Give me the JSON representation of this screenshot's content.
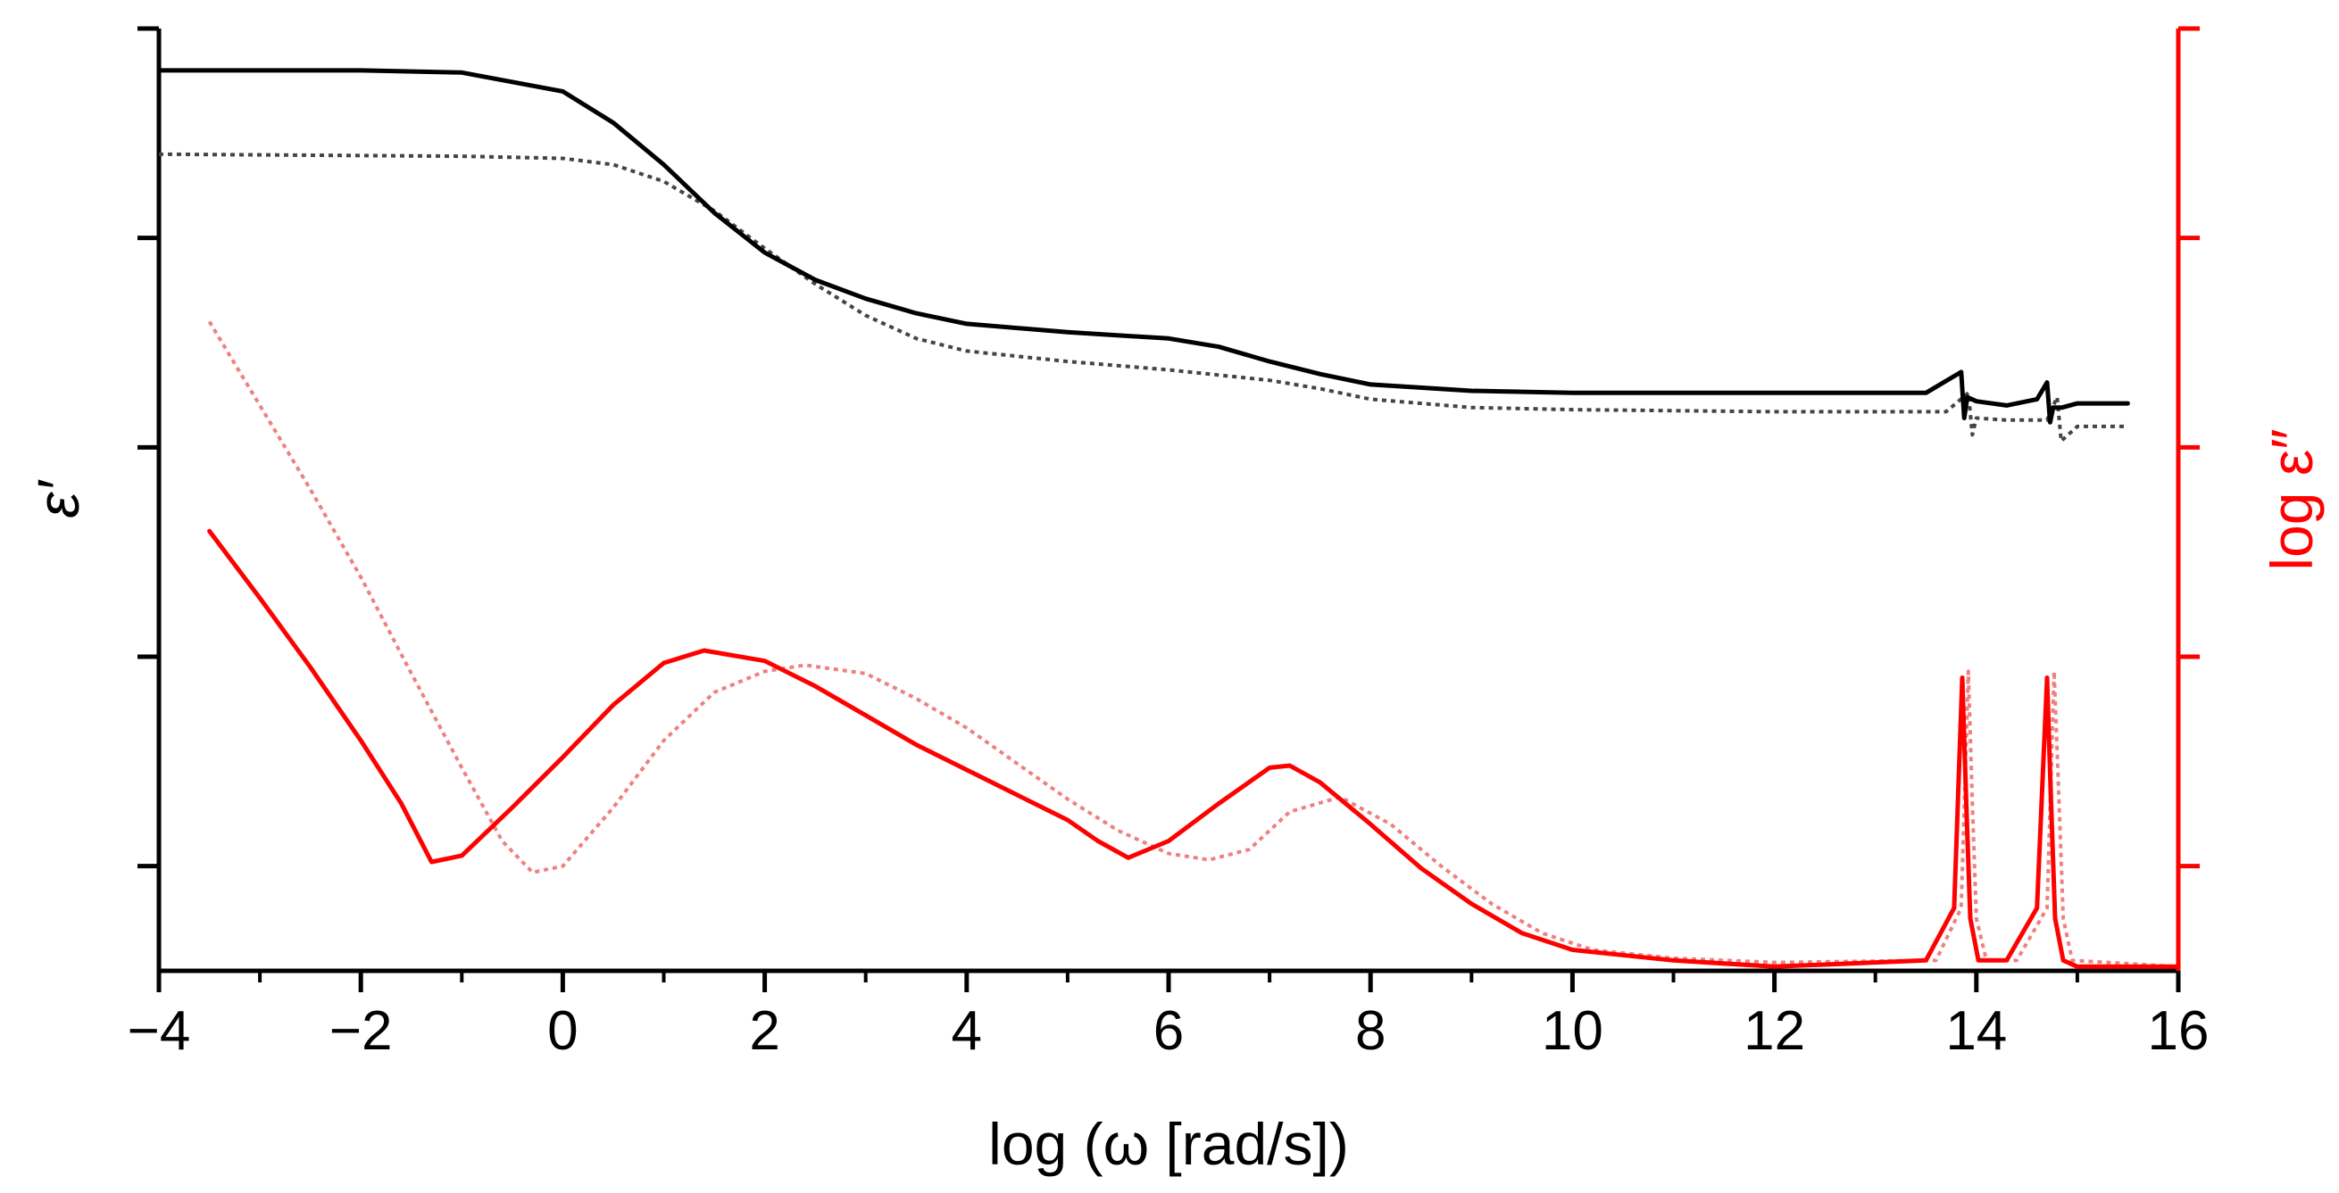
{
  "chart_data": {
    "type": "line",
    "title": "",
    "xlabel": "log (ω [rad/s])",
    "ylabel_left": "ε′",
    "ylabel_right": "log ε″",
    "xlim": [
      -4,
      16
    ],
    "x_ticks": [
      -4,
      -2,
      0,
      2,
      4,
      6,
      8,
      10,
      12,
      14,
      16
    ],
    "x_tick_labels": [
      "−4",
      "−2",
      "0",
      "2",
      "4",
      "6",
      "8",
      "10",
      "12",
      "14",
      "16"
    ],
    "y_left_range": [
      0,
      4.5
    ],
    "y_left_major_ticks": [
      0.5,
      1.5,
      2.5,
      3.5
    ],
    "y_right_range": [
      0,
      4.5
    ],
    "y_right_major_ticks": [
      0.5,
      1.5,
      2.5,
      3.5
    ],
    "y_tick_labels_shown": false,
    "colors": {
      "black": "#000000",
      "gray": "#444444",
      "red": "#ff0000",
      "pink": "#f08080"
    },
    "series": [
      {
        "name": "eps_prime_solid",
        "axis": "left",
        "style": "solid",
        "color": "#000000",
        "x": [
          -4,
          -2,
          -1,
          0,
          0.5,
          1,
          1.5,
          2,
          2.5,
          3,
          3.5,
          4,
          5,
          6,
          6.5,
          7,
          7.5,
          8,
          9,
          10,
          12,
          13.5,
          13.85,
          13.88,
          13.91,
          14,
          14.3,
          14.6,
          14.7,
          14.73,
          14.76,
          14.85,
          15,
          15.5
        ],
        "y": [
          4.3,
          4.3,
          4.29,
          4.2,
          4.05,
          3.85,
          3.62,
          3.43,
          3.3,
          3.21,
          3.14,
          3.09,
          3.05,
          3.02,
          2.98,
          2.91,
          2.85,
          2.8,
          2.77,
          2.76,
          2.76,
          2.76,
          2.86,
          2.64,
          2.74,
          2.72,
          2.7,
          2.73,
          2.81,
          2.62,
          2.69,
          2.69,
          2.71,
          2.71
        ]
      },
      {
        "name": "eps_prime_dotted",
        "axis": "left",
        "style": "dotted",
        "color": "#444444",
        "x": [
          -4,
          -1,
          0,
          0.5,
          1,
          1.5,
          2,
          2.5,
          3,
          3.5,
          4,
          5,
          6,
          7,
          7.5,
          8,
          9,
          10,
          12,
          13.7,
          13.92,
          13.96,
          14,
          14.3,
          14.7,
          14.8,
          14.84,
          15,
          15.5
        ],
        "y": [
          3.9,
          3.89,
          3.88,
          3.85,
          3.77,
          3.63,
          3.45,
          3.28,
          3.13,
          3.02,
          2.96,
          2.91,
          2.87,
          2.82,
          2.78,
          2.73,
          2.69,
          2.68,
          2.67,
          2.67,
          2.76,
          2.56,
          2.64,
          2.63,
          2.63,
          2.74,
          2.53,
          2.6,
          2.6
        ]
      },
      {
        "name": "log_eps_double_prime_solid",
        "axis": "right",
        "style": "solid",
        "color": "#ff0000",
        "x": [
          -3.5,
          -3,
          -2.5,
          -2,
          -1.6,
          -1.3,
          -1,
          -0.5,
          0,
          0.5,
          1,
          1.4,
          2,
          2.5,
          3,
          3.5,
          4,
          4.5,
          5,
          5.3,
          5.6,
          6,
          6.5,
          7,
          7.2,
          7.5,
          8,
          8.5,
          9,
          9.5,
          10,
          11,
          12,
          13.5,
          13.78,
          13.86,
          13.9,
          13.94,
          14.02,
          14.3,
          14.6,
          14.7,
          14.74,
          14.78,
          14.86,
          15,
          16
        ],
        "y": [
          2.1,
          1.78,
          1.45,
          1.1,
          0.8,
          0.52,
          0.55,
          0.78,
          1.02,
          1.27,
          1.47,
          1.53,
          1.48,
          1.36,
          1.22,
          1.08,
          0.96,
          0.84,
          0.72,
          0.62,
          0.54,
          0.62,
          0.8,
          0.97,
          0.98,
          0.9,
          0.7,
          0.49,
          0.32,
          0.18,
          0.1,
          0.05,
          0.02,
          0.05,
          0.3,
          1.4,
          0.8,
          0.25,
          0.05,
          0.05,
          0.3,
          1.4,
          0.8,
          0.25,
          0.05,
          0.02,
          0.02
        ]
      },
      {
        "name": "log_eps_double_prime_dotted",
        "axis": "right",
        "style": "dotted",
        "color": "#f08080",
        "x": [
          -3.5,
          -3,
          -2.5,
          -2,
          -1.5,
          -1,
          -0.6,
          -0.3,
          0,
          0.5,
          1,
          1.5,
          2,
          2.4,
          3,
          3.5,
          4,
          4.5,
          5,
          5.5,
          6,
          6.4,
          6.8,
          7.2,
          7.7,
          8.2,
          8.7,
          9.2,
          9.7,
          10.2,
          11,
          12,
          13.6,
          13.85,
          13.92,
          13.96,
          14,
          14.1,
          14.4,
          14.7,
          14.77,
          14.82,
          14.86,
          14.95,
          16
        ],
        "y": [
          3.1,
          2.7,
          2.3,
          1.88,
          1.42,
          0.97,
          0.62,
          0.47,
          0.5,
          0.78,
          1.1,
          1.33,
          1.43,
          1.46,
          1.42,
          1.3,
          1.16,
          0.99,
          0.82,
          0.67,
          0.56,
          0.53,
          0.58,
          0.76,
          0.83,
          0.7,
          0.5,
          0.32,
          0.18,
          0.1,
          0.06,
          0.04,
          0.05,
          0.3,
          1.43,
          0.8,
          0.25,
          0.05,
          0.05,
          0.3,
          1.43,
          0.8,
          0.25,
          0.05,
          0.02
        ]
      }
    ]
  }
}
